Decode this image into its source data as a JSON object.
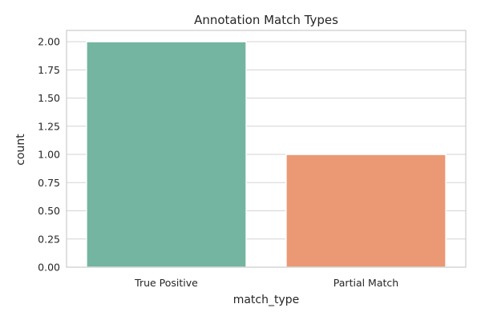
{
  "chart_data": {
    "type": "bar",
    "title": "Annotation Match Types",
    "xlabel": "match_type",
    "ylabel": "count",
    "categories": [
      "True Positive",
      "Partial Match"
    ],
    "values": [
      2,
      1
    ],
    "colors": [
      "#73b5a0",
      "#eb9875"
    ],
    "ylim": [
      0,
      2.1
    ],
    "yticks": [
      "0.00",
      "0.25",
      "0.50",
      "0.75",
      "1.00",
      "1.25",
      "1.50",
      "1.75",
      "2.00"
    ],
    "grid": true,
    "legend": "none"
  }
}
